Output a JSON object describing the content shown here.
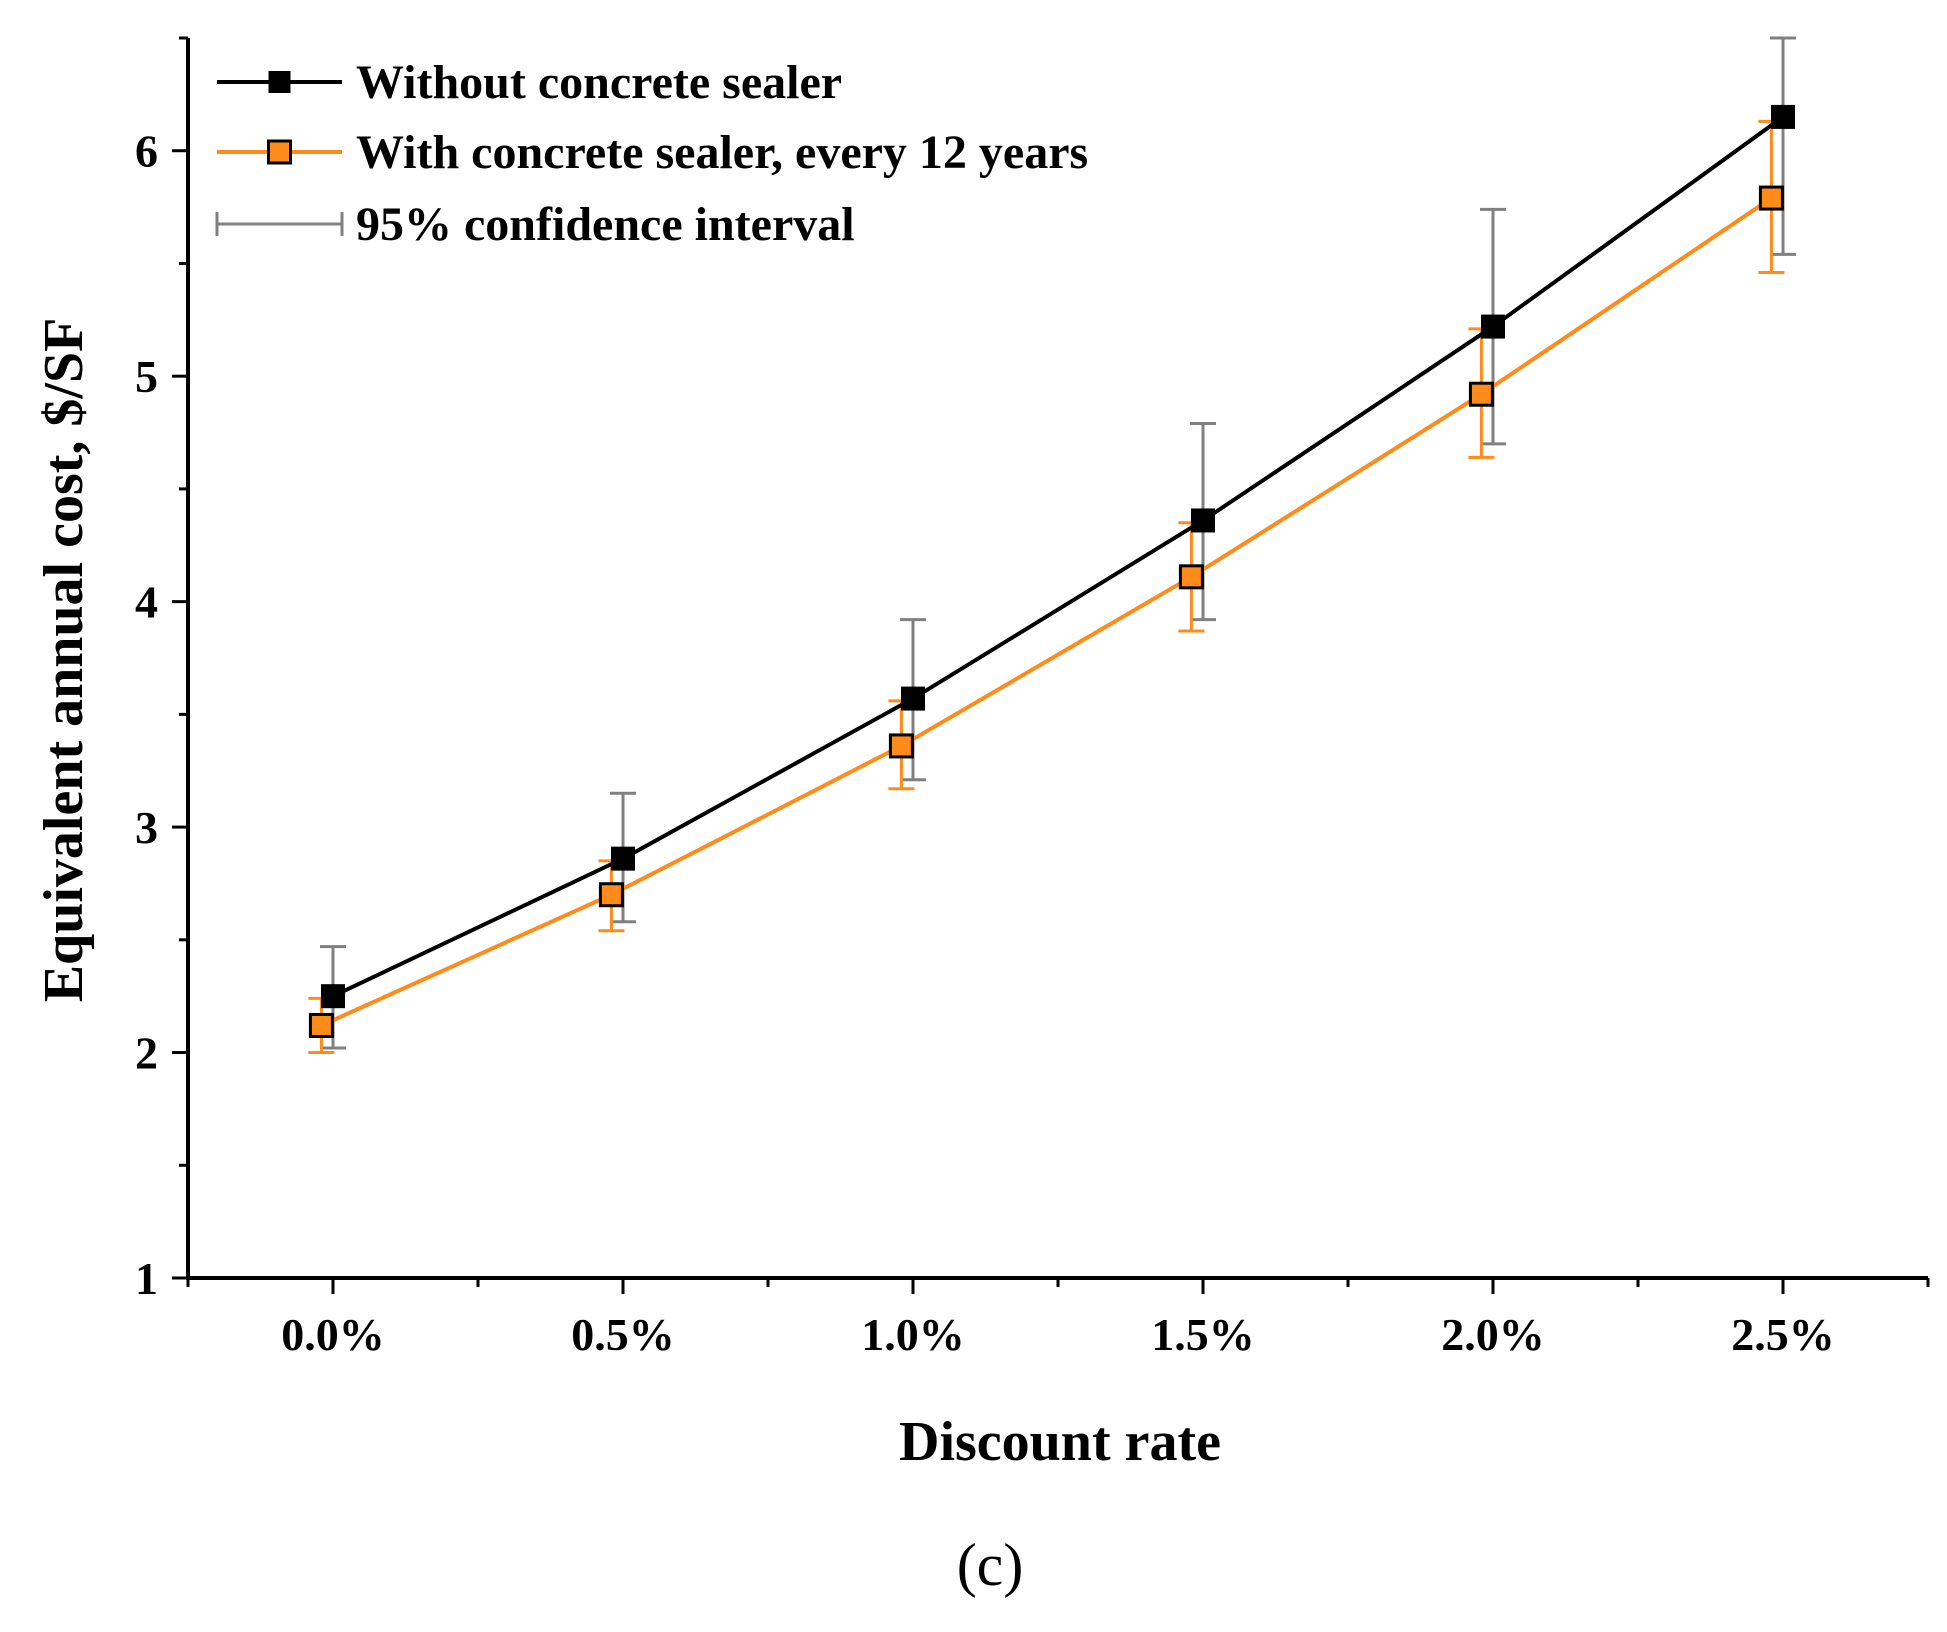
{
  "chart_data": {
    "type": "line",
    "title": "",
    "xlabel": "Discount rate",
    "ylabel": "Equivalent annual cost, $/SF",
    "categories": [
      "0.0%",
      "0.5%",
      "1.0%",
      "1.5%",
      "2.0%",
      "2.5%"
    ],
    "x": [
      0.0,
      0.5,
      1.0,
      1.5,
      2.0,
      2.5
    ],
    "xlim": [
      -0.25,
      2.75
    ],
    "ylim": [
      1,
      6.5
    ],
    "yticks": [
      1,
      2,
      3,
      4,
      5,
      6
    ],
    "ytick_labels": [
      "1",
      "2",
      "3",
      "4",
      "5",
      "6"
    ],
    "grid": false,
    "legend_position": "top-left",
    "series": [
      {
        "name": "Without concrete sealer",
        "color": "#000000",
        "marker": "filled-square",
        "values": [
          2.25,
          2.86,
          3.57,
          4.36,
          5.22,
          6.15
        ],
        "ci_lower": [
          2.02,
          2.58,
          3.21,
          3.92,
          4.7,
          5.54
        ],
        "ci_upper": [
          2.47,
          3.15,
          3.92,
          4.79,
          5.74,
          6.5
        ]
      },
      {
        "name": "With concrete sealer, every 12 years",
        "color": "#FF8C1A",
        "marker": "open-square",
        "values": [
          2.12,
          2.7,
          3.36,
          4.11,
          4.92,
          5.79
        ],
        "ci_lower": [
          2.0,
          2.54,
          3.17,
          3.87,
          4.64,
          5.46
        ],
        "ci_upper": [
          2.24,
          2.85,
          3.56,
          4.35,
          5.21,
          6.13
        ]
      }
    ],
    "ci_legend_label": "95% confidence interval",
    "ci_color": "#808080",
    "panel_label": "(c)"
  }
}
